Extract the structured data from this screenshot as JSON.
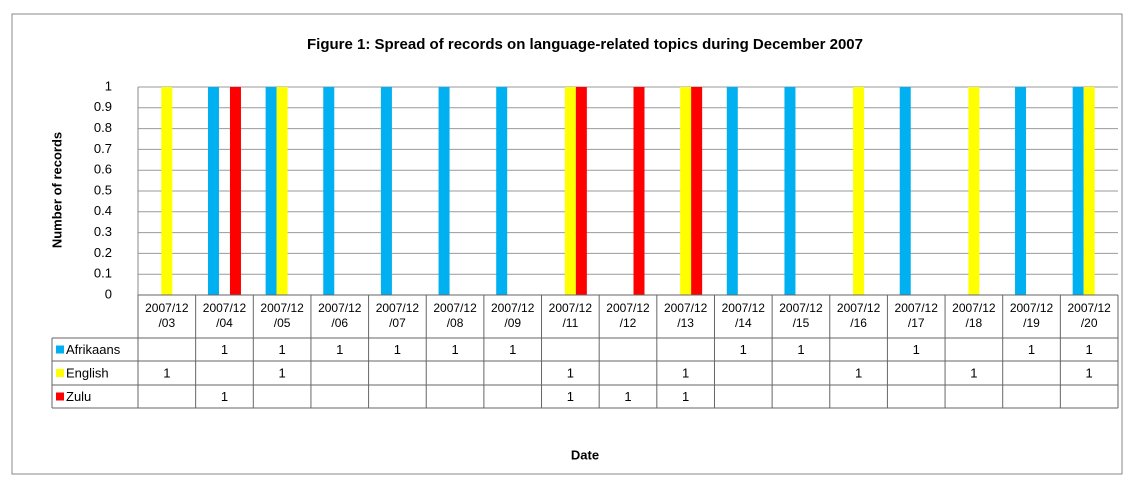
{
  "chart_data": {
    "type": "bar",
    "title": "Figure 1: Spread of records on language-related topics during December 2007",
    "x_label": "Date",
    "y_label": "Number of records",
    "categories": [
      "2007/12/03",
      "2007/12/04",
      "2007/12/05",
      "2007/12/06",
      "2007/12/07",
      "2007/12/08",
      "2007/12/09",
      "2007/12/11",
      "2007/12/12",
      "2007/12/13",
      "2007/12/14",
      "2007/12/15",
      "2007/12/16",
      "2007/12/17",
      "2007/12/18",
      "2007/12/19",
      "2007/12/20"
    ],
    "series": [
      {
        "name": "Afrikaans",
        "color": "#00b0f0",
        "values": [
          null,
          1,
          1,
          1,
          1,
          1,
          1,
          null,
          null,
          null,
          1,
          1,
          null,
          1,
          null,
          1,
          1
        ]
      },
      {
        "name": "English",
        "color": "#ffff00",
        "values": [
          1,
          null,
          1,
          null,
          null,
          null,
          null,
          1,
          null,
          1,
          null,
          null,
          1,
          null,
          1,
          null,
          1
        ]
      },
      {
        "name": "Zulu",
        "color": "#ff0000",
        "values": [
          null,
          1,
          null,
          null,
          null,
          null,
          null,
          1,
          1,
          1,
          null,
          null,
          null,
          null,
          null,
          null,
          null
        ]
      }
    ],
    "ylim": [
      0,
      1
    ],
    "yticks": [
      0,
      0.1,
      0.2,
      0.3,
      0.4,
      0.5,
      0.6,
      0.7,
      0.8,
      0.9,
      1
    ],
    "grid": true
  }
}
